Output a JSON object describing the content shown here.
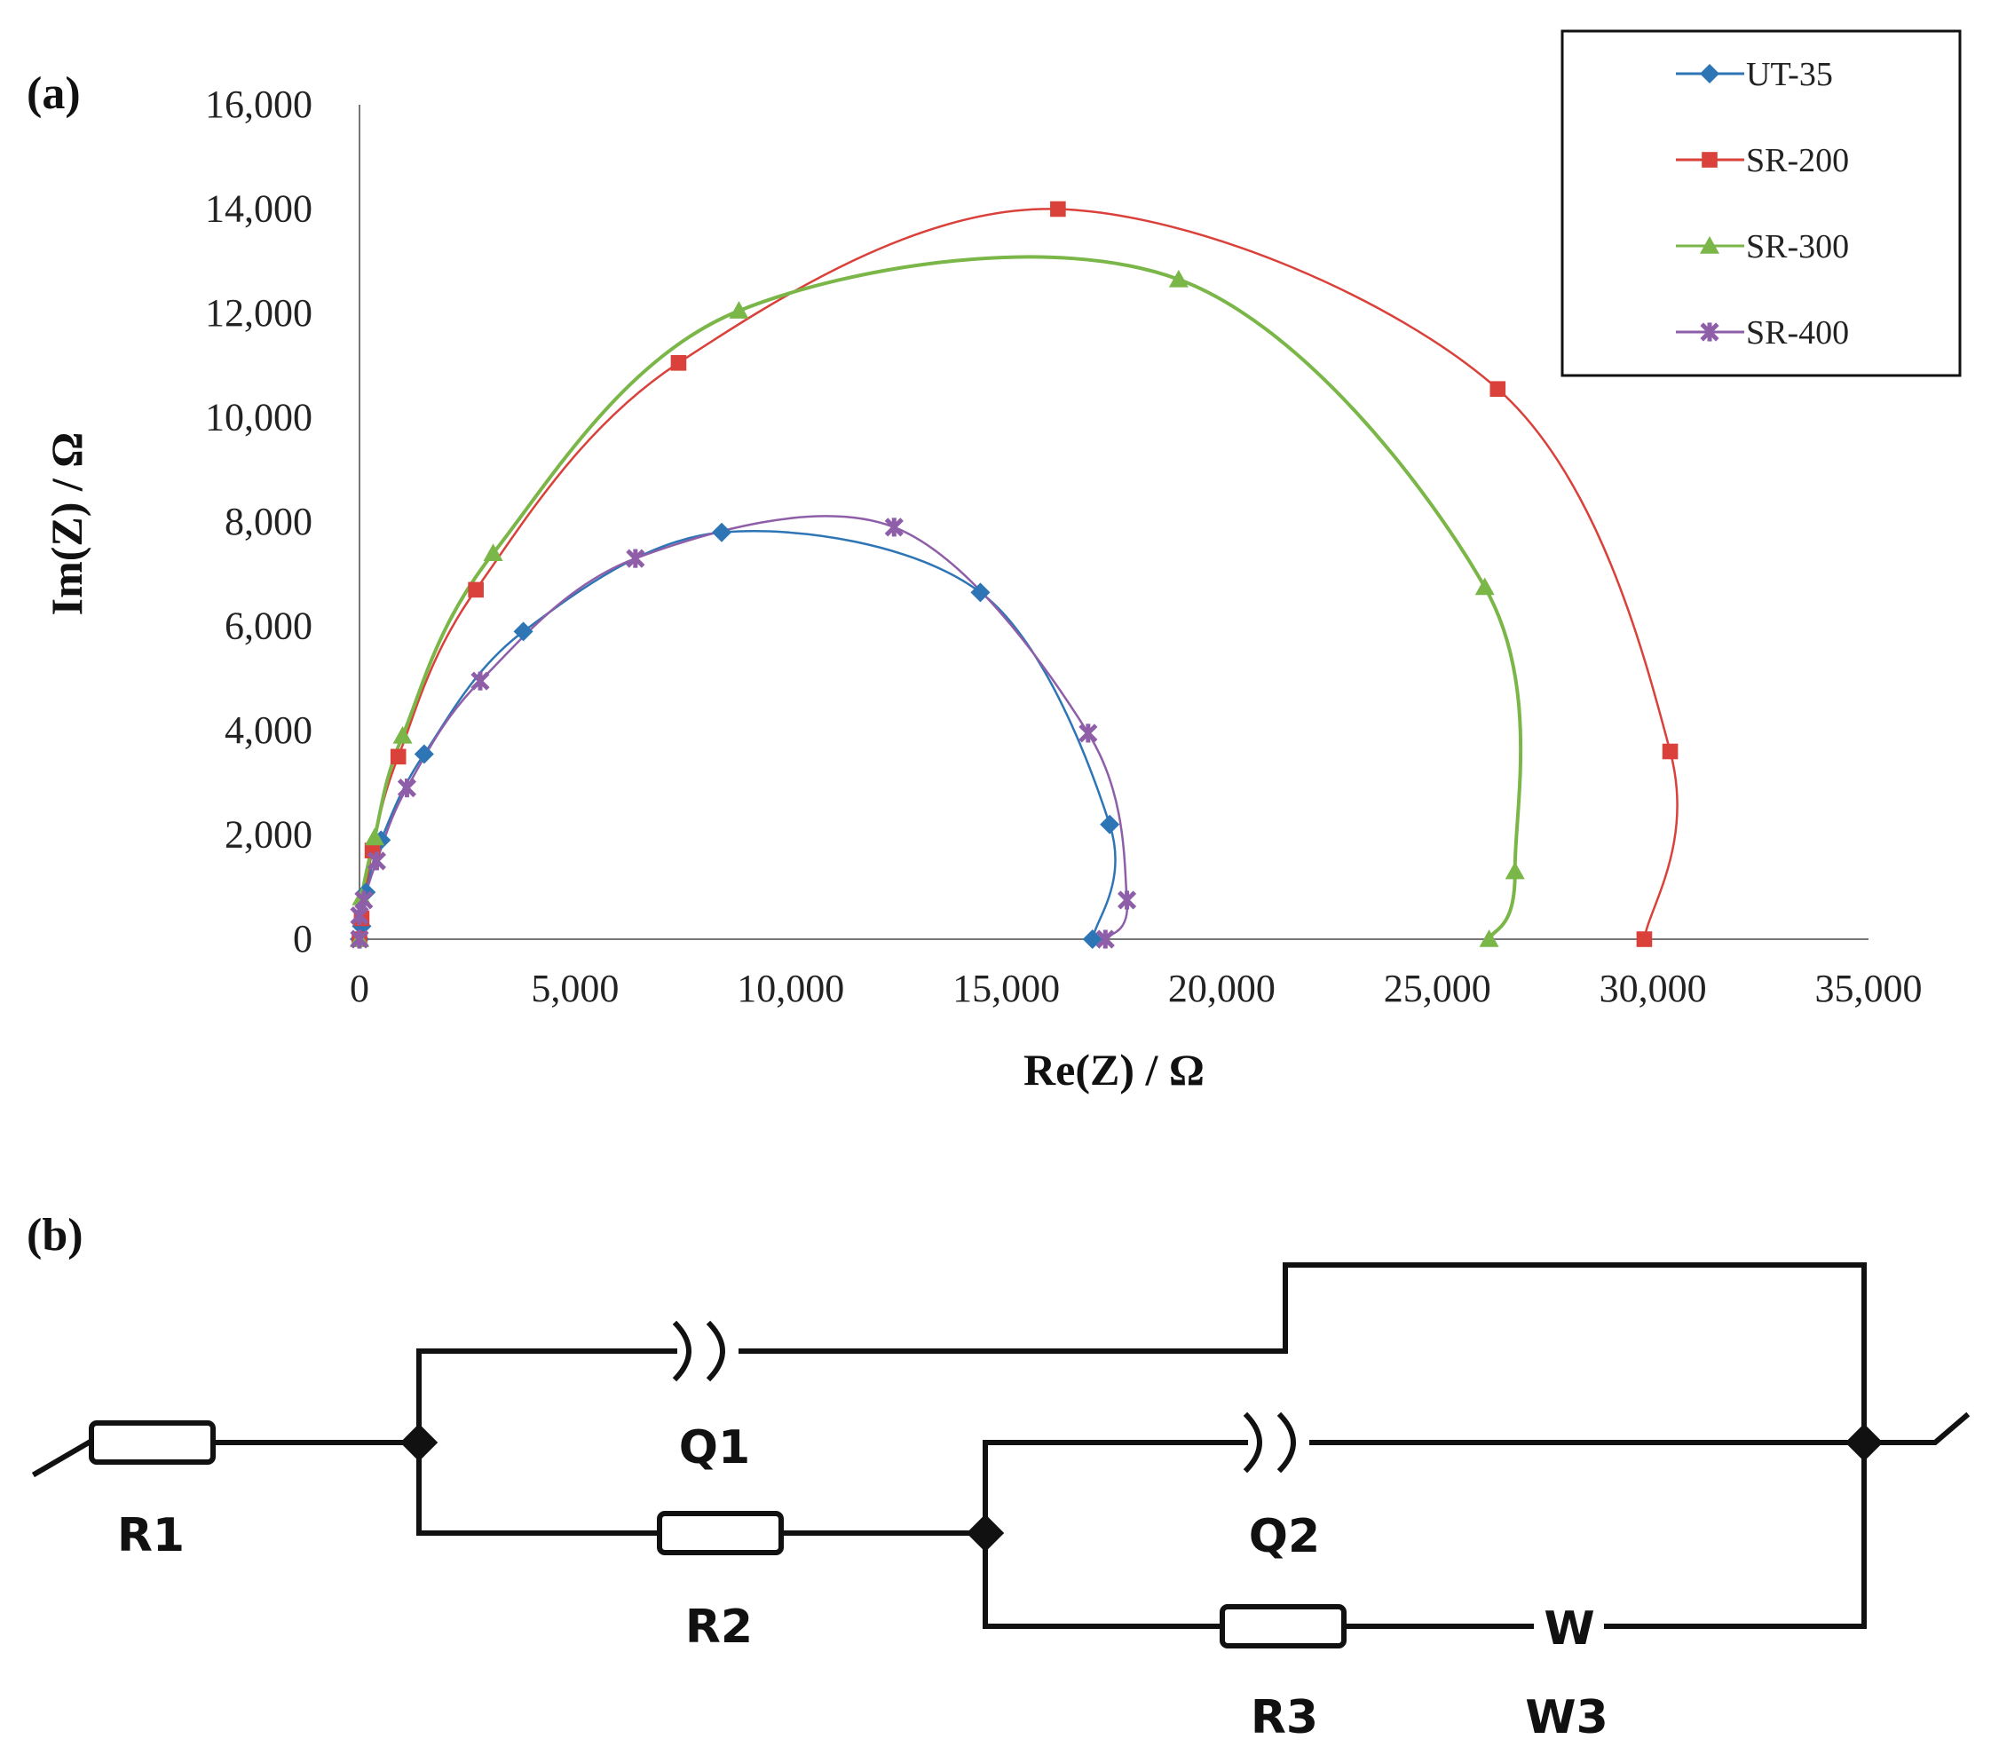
{
  "panels": {
    "a_label": "(a)",
    "b_label": "(b)"
  },
  "chart_data": {
    "type": "scatter",
    "title": "",
    "xlabel": "Re(Z) / Ω",
    "ylabel": "Im(Z) / Ω",
    "xlim": [
      0,
      35000
    ],
    "ylim": [
      0,
      16000
    ],
    "xticks": [
      0,
      5000,
      10000,
      15000,
      20000,
      25000,
      30000,
      35000
    ],
    "xtick_labels": [
      "0",
      "5,000",
      "10,000",
      "15,000",
      "20,000",
      "25,000",
      "30,000",
      "35,000"
    ],
    "yticks": [
      0,
      2000,
      4000,
      6000,
      8000,
      10000,
      12000,
      14000,
      16000
    ],
    "ytick_labels": [
      "0",
      "2,000",
      "4,000",
      "6,000",
      "8,000",
      "10,000",
      "12,000",
      "14,000",
      "16,000"
    ],
    "grid": false,
    "legend_position": "top-right",
    "line_style": "smoothed",
    "series": [
      {
        "name": "UT-35",
        "color": "#2e75b6",
        "marker": "diamond",
        "points": [
          [
            0,
            0
          ],
          [
            50,
            250
          ],
          [
            150,
            900
          ],
          [
            500,
            1900
          ],
          [
            1500,
            3550
          ],
          [
            3800,
            5900
          ],
          [
            8400,
            7800
          ],
          [
            14400,
            6650
          ],
          [
            17400,
            2200
          ],
          [
            17000,
            0
          ]
        ]
      },
      {
        "name": "SR-200",
        "color": "#d9413a",
        "marker": "square",
        "points": [
          [
            0,
            0
          ],
          [
            50,
            400
          ],
          [
            300,
            1700
          ],
          [
            900,
            3500
          ],
          [
            2700,
            6700
          ],
          [
            7400,
            11050
          ],
          [
            16200,
            14000
          ],
          [
            26400,
            10550
          ],
          [
            30400,
            3600
          ],
          [
            29800,
            0
          ]
        ]
      },
      {
        "name": "SR-300",
        "color": "#7ab648",
        "marker": "triangle",
        "points": [
          [
            0,
            0
          ],
          [
            50,
            800
          ],
          [
            350,
            1950
          ],
          [
            1000,
            3900
          ],
          [
            3100,
            7400
          ],
          [
            8800,
            12050
          ],
          [
            19000,
            12650
          ],
          [
            26100,
            6750
          ],
          [
            26800,
            1300
          ],
          [
            26200,
            0
          ]
        ]
      },
      {
        "name": "SR-400",
        "color": "#8e5ea8",
        "marker": "star",
        "points": [
          [
            0,
            0
          ],
          [
            0,
            450
          ],
          [
            100,
            750
          ],
          [
            400,
            1500
          ],
          [
            1100,
            2900
          ],
          [
            2800,
            4950
          ],
          [
            6400,
            7300
          ],
          [
            12400,
            7900
          ],
          [
            16900,
            3950
          ],
          [
            17800,
            750
          ],
          [
            17300,
            0
          ]
        ]
      }
    ]
  },
  "circuit": {
    "labels": {
      "r1": "R1",
      "q1": "Q1",
      "r2": "R2",
      "q2": "Q2",
      "r3": "R3",
      "w3": "W3",
      "warburg_symbol": "W"
    }
  }
}
